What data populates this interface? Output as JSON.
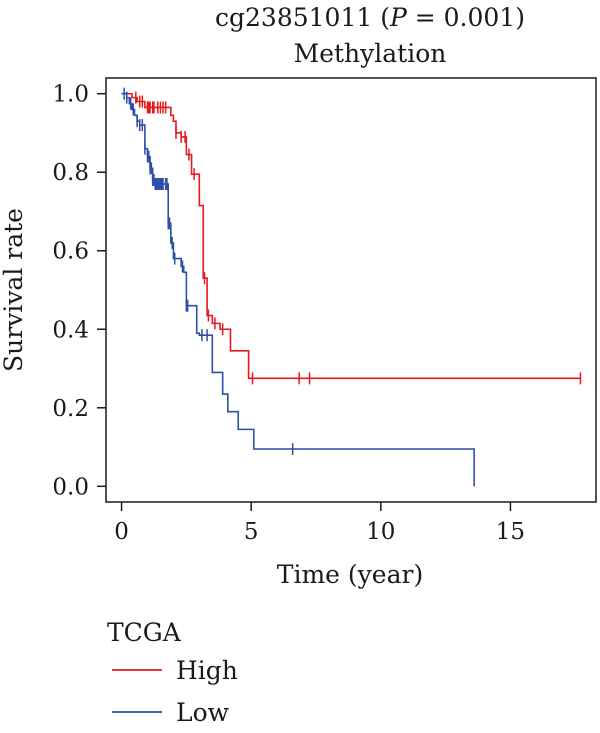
{
  "chart_data": {
    "type": "line",
    "title_line1_prefix": "cg23851011 (",
    "title_line1_italic": "P",
    "title_line1_suffix": " = 0.001)",
    "title_line2": "Methylation",
    "xlabel": "Time (year)",
    "ylabel": "Survival rate",
    "xlim": [
      -0.6,
      18.3
    ],
    "ylim": [
      -0.04,
      1.04
    ],
    "x_ticks": [
      0,
      5,
      10,
      15
    ],
    "x_tick_labels": [
      "0",
      "5",
      "10",
      "15"
    ],
    "y_ticks": [
      0.0,
      0.2,
      0.4,
      0.6,
      0.8,
      1.0
    ],
    "y_tick_labels": [
      "0.0",
      "0.2",
      "0.4",
      "0.6",
      "0.8",
      "1.0"
    ],
    "grid": false,
    "legend": {
      "title": "TCGA",
      "position": "bottom-left",
      "entries": [
        {
          "label": "High",
          "color": "#e41a1c"
        },
        {
          "label": "Low",
          "color": "#2d4fa6"
        }
      ]
    },
    "series": [
      {
        "name": "High",
        "color": "#e41a1c",
        "steps": [
          [
            0,
            1.0
          ],
          [
            0.4,
            0.99
          ],
          [
            0.6,
            0.98
          ],
          [
            0.9,
            0.965
          ],
          [
            1.9,
            0.945
          ],
          [
            2.0,
            0.93
          ],
          [
            2.1,
            0.9
          ],
          [
            2.3,
            0.89
          ],
          [
            2.5,
            0.845
          ],
          [
            2.7,
            0.795
          ],
          [
            3.0,
            0.715
          ],
          [
            3.15,
            0.53
          ],
          [
            3.3,
            0.435
          ],
          [
            3.5,
            0.415
          ],
          [
            3.8,
            0.4
          ],
          [
            4.2,
            0.345
          ],
          [
            4.9,
            0.275
          ],
          [
            17.7,
            0.275
          ]
        ],
        "censor_x": [
          0.55,
          0.7,
          0.8,
          1.0,
          1.05,
          1.1,
          1.2,
          1.25,
          1.4,
          1.5,
          1.6,
          1.7,
          2.1,
          2.3,
          2.45,
          2.6,
          2.8,
          3.2,
          3.35,
          3.6,
          3.9,
          5.05,
          6.85,
          7.25,
          17.7
        ]
      },
      {
        "name": "Low",
        "color": "#2d4fa6",
        "steps": [
          [
            0,
            1.0
          ],
          [
            0.2,
            0.99
          ],
          [
            0.3,
            0.975
          ],
          [
            0.4,
            0.96
          ],
          [
            0.5,
            0.945
          ],
          [
            0.6,
            0.93
          ],
          [
            0.7,
            0.92
          ],
          [
            0.9,
            0.86
          ],
          [
            1.0,
            0.84
          ],
          [
            1.1,
            0.81
          ],
          [
            1.2,
            0.78
          ],
          [
            1.3,
            0.77
          ],
          [
            1.8,
            0.67
          ],
          [
            1.9,
            0.62
          ],
          [
            2.0,
            0.58
          ],
          [
            2.3,
            0.56
          ],
          [
            2.4,
            0.545
          ],
          [
            2.5,
            0.46
          ],
          [
            2.9,
            0.39
          ],
          [
            3.0,
            0.385
          ],
          [
            3.5,
            0.29
          ],
          [
            3.9,
            0.235
          ],
          [
            4.1,
            0.19
          ],
          [
            4.5,
            0.145
          ],
          [
            5.1,
            0.095
          ],
          [
            13.6,
            0.095
          ],
          [
            13.6,
            0.0
          ]
        ],
        "censor_x": [
          0.1,
          0.2,
          0.35,
          0.45,
          0.6,
          0.7,
          0.8,
          0.9,
          1.0,
          1.05,
          1.1,
          1.15,
          1.2,
          1.25,
          1.3,
          1.35,
          1.4,
          1.45,
          1.5,
          1.55,
          1.6,
          1.7,
          1.75,
          1.8,
          1.85,
          1.95,
          2.05,
          2.35,
          2.5,
          2.55,
          3.1,
          3.3,
          6.6
        ]
      }
    ]
  }
}
